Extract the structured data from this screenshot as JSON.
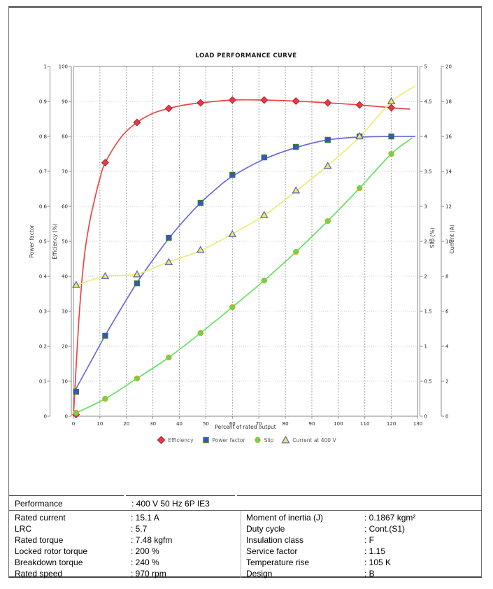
{
  "chart_data": {
    "type": "line",
    "title": "LOAD PERFORMANCE CURVE",
    "xlabel": "Percent of rated output",
    "grid": true,
    "legend_position": "bottom",
    "x_axis": {
      "min": 0,
      "max": 130,
      "ticks": [
        "0",
        "10",
        "20",
        "30",
        "40",
        "50",
        "60",
        "70",
        "80",
        "90",
        "100",
        "110",
        "120",
        "130"
      ]
    },
    "axes": {
      "power_factor": {
        "label": "Power factor",
        "min": 0,
        "max": 1,
        "ticks": [
          "0",
          "0.1",
          "0.2",
          "0.3",
          "0.4",
          "0.5",
          "0.6",
          "0.7",
          "0.8",
          "0.9",
          "1"
        ]
      },
      "efficiency": {
        "label": "Efficiency (%)",
        "min": 0,
        "max": 100,
        "ticks": [
          "0",
          "10",
          "20",
          "30",
          "40",
          "50",
          "60",
          "70",
          "80",
          "90",
          "100"
        ]
      },
      "slip": {
        "label": "Slip (%)",
        "min": 0,
        "max": 5,
        "ticks": [
          "0",
          "0.5",
          "1",
          "1.5",
          "2",
          "2.5",
          "3",
          "3.5",
          "4",
          "4.5",
          "5"
        ]
      },
      "current": {
        "label": "Current (A)",
        "min": 0,
        "max": 20,
        "ticks": [
          "0",
          "2",
          "4",
          "6",
          "8",
          "10",
          "12",
          "14",
          "16",
          "18",
          "20"
        ]
      }
    },
    "x": [
      1,
      12,
      24,
      36,
      48,
      60,
      72,
      84,
      96,
      108,
      120
    ],
    "series": [
      {
        "name": "Efficiency",
        "axis": "efficiency",
        "marker": "diamond",
        "line_color": "#ee4545",
        "marker_fill": "#e93a42",
        "marker_stroke": "#b02030",
        "values": [
          0.5,
          72.5,
          84,
          88,
          89.6,
          90.4,
          90.4,
          90.1,
          89.6,
          89,
          88.2
        ],
        "curve": [
          [
            0,
            0
          ],
          [
            2,
            27
          ],
          [
            4,
            45
          ],
          [
            6,
            55
          ],
          [
            8,
            62
          ],
          [
            10,
            68
          ],
          [
            12,
            72.5
          ],
          [
            18,
            79.8
          ],
          [
            24,
            84
          ],
          [
            30,
            86.6
          ],
          [
            36,
            88
          ],
          [
            42,
            89
          ],
          [
            48,
            89.6
          ],
          [
            60,
            90.4
          ],
          [
            72,
            90.4
          ],
          [
            84,
            90.1
          ],
          [
            96,
            89.6
          ],
          [
            108,
            89
          ],
          [
            120,
            88.2
          ],
          [
            127,
            87.8
          ]
        ]
      },
      {
        "name": "Power factor",
        "axis": "power_factor",
        "marker": "square",
        "line_color": "#6b6bdc",
        "marker_fill": "#3f51c4",
        "marker_stroke": "#2f7d32",
        "values": [
          0.07,
          0.23,
          0.38,
          0.51,
          0.61,
          0.69,
          0.74,
          0.77,
          0.79,
          0.8,
          0.8
        ],
        "curve": [
          [
            0,
            0.065
          ],
          [
            6,
            0.148
          ],
          [
            12,
            0.231
          ],
          [
            18,
            0.308
          ],
          [
            24,
            0.382
          ],
          [
            30,
            0.447
          ],
          [
            36,
            0.508
          ],
          [
            42,
            0.562
          ],
          [
            48,
            0.61
          ],
          [
            54,
            0.651
          ],
          [
            60,
            0.686
          ],
          [
            72,
            0.735
          ],
          [
            84,
            0.768
          ],
          [
            96,
            0.79
          ],
          [
            108,
            0.798
          ],
          [
            120,
            0.8
          ],
          [
            129,
            0.8
          ]
        ]
      },
      {
        "name": "Slip",
        "axis": "slip",
        "marker": "circle",
        "line_color": "#67e05f",
        "marker_fill": "#55e14b",
        "marker_stroke": "#dca32b",
        "values": [
          0.05,
          0.25,
          0.54,
          0.84,
          1.19,
          1.56,
          1.94,
          2.35,
          2.79,
          3.26,
          3.75
        ],
        "curve": [
          [
            0,
            0.03
          ],
          [
            12,
            0.25
          ],
          [
            24,
            0.54
          ],
          [
            36,
            0.84
          ],
          [
            48,
            1.19
          ],
          [
            60,
            1.56
          ],
          [
            72,
            1.94
          ],
          [
            84,
            2.35
          ],
          [
            96,
            2.79
          ],
          [
            108,
            3.26
          ],
          [
            120,
            3.75
          ],
          [
            128,
            3.98
          ]
        ]
      },
      {
        "name": "Current at 400 V",
        "axis": "current",
        "marker": "triangle",
        "line_color": "#ecec72",
        "marker_fill": "#f0ec52",
        "marker_stroke": "#5a5fc8",
        "values": [
          7.5,
          8.0,
          8.1,
          8.8,
          9.5,
          10.4,
          11.5,
          12.9,
          14.3,
          16.0,
          18.0
        ],
        "curve": [
          [
            0,
            7.44
          ],
          [
            12,
            8.0
          ],
          [
            24,
            8.13
          ],
          [
            36,
            8.83
          ],
          [
            48,
            9.47
          ],
          [
            60,
            10.43
          ],
          [
            72,
            11.49
          ],
          [
            84,
            12.87
          ],
          [
            96,
            14.33
          ],
          [
            108,
            15.97
          ],
          [
            120,
            17.97
          ],
          [
            129,
            18.88
          ]
        ]
      }
    ]
  },
  "table": {
    "header": {
      "label": "Performance",
      "value": ": 400 V 50 Hz 6P IE3"
    },
    "left_rows": [
      {
        "label": "Rated current",
        "value": ": 15.1 A"
      },
      {
        "label": "LRC",
        "value": ": 5.7"
      },
      {
        "label": "Rated torque",
        "value": ": 7.48 kgfm"
      },
      {
        "label": "Locked rotor torque",
        "value": ": 200 %"
      },
      {
        "label": "Breakdown torque",
        "value": ": 240 %"
      },
      {
        "label": "Rated speed",
        "value": ": 970 rpm"
      }
    ],
    "right_rows": [
      {
        "label": "Moment of inertia (J)",
        "value": ": 0.1867 kgm²"
      },
      {
        "label": "Duty cycle",
        "value": ": Cont.(S1)"
      },
      {
        "label": "Insulation class",
        "value": ": F"
      },
      {
        "label": "Service factor",
        "value": ": 1.15"
      },
      {
        "label": "Temperature rise",
        "value": ": 105 K"
      },
      {
        "label": "Design",
        "value": ": B"
      }
    ]
  }
}
